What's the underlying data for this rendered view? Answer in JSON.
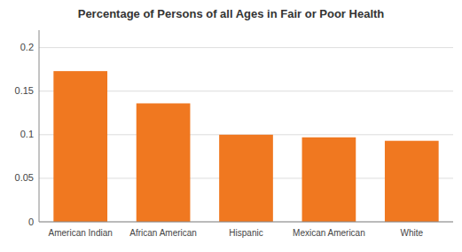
{
  "chart_data": {
    "type": "bar",
    "title": "Percentage of Persons of all Ages in Fair or Poor Health",
    "categories": [
      "American Indian",
      "African American",
      "Hispanic",
      "Mexican American",
      "White"
    ],
    "values": [
      0.173,
      0.136,
      0.1,
      0.097,
      0.093
    ],
    "color": "#F07820",
    "ylim": [
      0,
      0.22
    ],
    "yticks": [
      0,
      0.05,
      0.1,
      0.15,
      0.2
    ],
    "grid": true
  }
}
